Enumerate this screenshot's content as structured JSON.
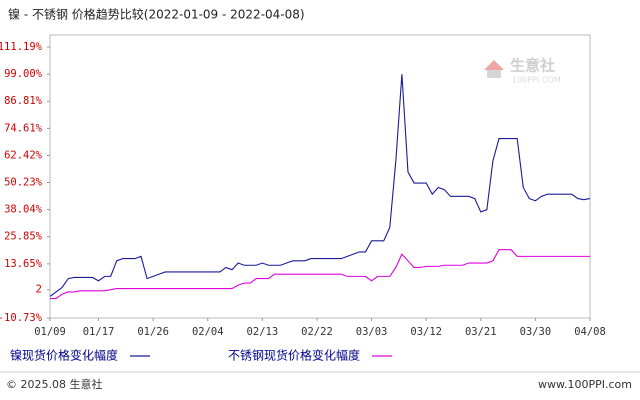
{
  "chart_data": {
    "type": "line",
    "title": "镍 - 不锈钢 价格趋势比较(2022-01-09 - 2022-04-08)",
    "watermark": "生意社",
    "watermark_sub": "100PPI.COM",
    "footer_left": "© 2025.08 生意社",
    "footer_right": "www.100PPI.com",
    "categories": [
      "01/09",
      null,
      null,
      null,
      null,
      null,
      null,
      null,
      "01/17",
      null,
      null,
      null,
      null,
      null,
      null,
      null,
      null,
      "01/26",
      null,
      null,
      null,
      null,
      null,
      null,
      null,
      null,
      "02/04",
      null,
      null,
      null,
      null,
      null,
      null,
      null,
      null,
      "02/13",
      null,
      null,
      null,
      null,
      null,
      null,
      null,
      null,
      "02/22",
      null,
      null,
      null,
      null,
      null,
      null,
      null,
      null,
      "03/03",
      null,
      null,
      null,
      null,
      null,
      null,
      null,
      null,
      "03/12",
      null,
      null,
      null,
      null,
      null,
      null,
      null,
      null,
      "03/21",
      null,
      null,
      null,
      null,
      null,
      null,
      null,
      null,
      "03/30",
      null,
      null,
      null,
      null,
      null,
      null,
      null,
      null,
      "04/08"
    ],
    "series": [
      {
        "name": "镍现货价格变化幅度",
        "color": "#1a1a9c",
        "values": [
          -1,
          1,
          3,
          7,
          7.5,
          7.5,
          7.5,
          7.5,
          6,
          8,
          8,
          15,
          16,
          16,
          16,
          17,
          7,
          8,
          9,
          10,
          10,
          10,
          10,
          10,
          10,
          10,
          10,
          10,
          10,
          12,
          11,
          14,
          13,
          13,
          13,
          14,
          13,
          13,
          13,
          14,
          15,
          15,
          15,
          16,
          16,
          16,
          16,
          16,
          16,
          17,
          18,
          19,
          19,
          24,
          24,
          24,
          30,
          60,
          99,
          55,
          50,
          50,
          50,
          45,
          48,
          47,
          44,
          44,
          44,
          44,
          43,
          37,
          38,
          60,
          70,
          70,
          70,
          70,
          48,
          43,
          42,
          44,
          45,
          45,
          45,
          45,
          45,
          43,
          42.5,
          43
        ]
      },
      {
        "name": "不锈钢现货价格变化幅度",
        "color": "#e000e0",
        "values": [
          -2,
          -2,
          0,
          1,
          1,
          1.5,
          1.5,
          1.5,
          1.5,
          1.5,
          2,
          2.5,
          2.5,
          2.5,
          2.5,
          2.5,
          2.5,
          2.5,
          2.5,
          2.5,
          2.5,
          2.5,
          2.5,
          2.5,
          2.5,
          2.5,
          2.5,
          2.5,
          2.5,
          2.5,
          2.5,
          4,
          5,
          5,
          7,
          7,
          7,
          9,
          9,
          9,
          9,
          9,
          9,
          9,
          9,
          9,
          9,
          9,
          9,
          8,
          8,
          8,
          8,
          6,
          8,
          8,
          8,
          12,
          18,
          15,
          12,
          12,
          12.5,
          12.5,
          12.5,
          13,
          13,
          13,
          13,
          14,
          14,
          14,
          14,
          15,
          20,
          20,
          20,
          17,
          17,
          17,
          17,
          17,
          17,
          17,
          17,
          17,
          17,
          17,
          17,
          17
        ]
      }
    ],
    "ylim": [
      -10.73,
      116.6
    ],
    "yticks": [
      {
        "value": 111.19,
        "label": "111.19%"
      },
      {
        "value": 99,
        "label": "99.00%"
      },
      {
        "value": 86.81,
        "label": "86.81%"
      },
      {
        "value": 74.61,
        "label": "74.61%"
      },
      {
        "value": 62.42,
        "label": "62.42%"
      },
      {
        "value": 50.23,
        "label": "50.23%"
      },
      {
        "value": 38.04,
        "label": "38.04%"
      },
      {
        "value": 25.85,
        "label": "25.85%"
      },
      {
        "value": 13.65,
        "label": "13.65%"
      },
      2,
      {
        "value": -10.73,
        "label": "-10.73%"
      }
    ],
    "grid": false
  }
}
